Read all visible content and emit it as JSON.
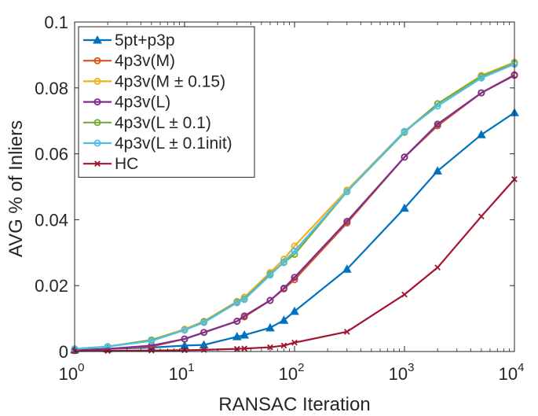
{
  "chart_data": {
    "type": "line",
    "xscale": "log",
    "xlabel": "RANSAC Iteration",
    "ylabel": "AVG % of Inliers",
    "xlim": [
      1,
      10000
    ],
    "ylim": [
      0,
      0.1
    ],
    "yticks": [
      0,
      0.02,
      0.04,
      0.06,
      0.08,
      0.1
    ],
    "ytick_labels": [
      "0",
      "0.02",
      "0.04",
      "0.06",
      "0.08",
      "0.1"
    ],
    "xticks": [
      1,
      10,
      100,
      1000,
      10000
    ],
    "xtick_labels": [
      {
        "base": "10",
        "exp": "0"
      },
      {
        "base": "10",
        "exp": "1"
      },
      {
        "base": "10",
        "exp": "2"
      },
      {
        "base": "10",
        "exp": "3"
      },
      {
        "base": "10",
        "exp": "4"
      }
    ],
    "x": [
      1,
      2,
      5,
      10,
      15,
      30,
      35,
      60,
      80,
      100,
      300,
      1000,
      2000,
      5000,
      10000
    ],
    "legend_position": "top-left",
    "series": [
      {
        "name": "5pt+p3p",
        "color": "#0072BD",
        "marker": "triangle",
        "values": [
          0.0005,
          0.0008,
          0.0012,
          0.0018,
          0.002,
          0.0045,
          0.005,
          0.0072,
          0.0095,
          0.0122,
          0.025,
          0.0435,
          0.0548,
          0.0658,
          0.0725
        ]
      },
      {
        "name": "4p3v(M)",
        "color": "#D95319",
        "marker": "circle",
        "values": [
          0.0003,
          0.0008,
          0.0015,
          0.0038,
          0.0058,
          0.0092,
          0.0105,
          0.0155,
          0.019,
          0.0218,
          0.039,
          0.059,
          0.0685,
          0.0785,
          0.084
        ]
      },
      {
        "name": "4p3v(M ± 0.15)",
        "color": "#EDB120",
        "marker": "circle",
        "values": [
          0.0008,
          0.0015,
          0.0035,
          0.0068,
          0.0092,
          0.0152,
          0.0165,
          0.024,
          0.028,
          0.032,
          0.049,
          0.0668,
          0.0752,
          0.0838,
          0.0878
        ]
      },
      {
        "name": "4p3v(L)",
        "color": "#7E2F8E",
        "marker": "circle",
        "values": [
          0.0003,
          0.0008,
          0.0018,
          0.0038,
          0.0058,
          0.0092,
          0.0108,
          0.0155,
          0.0192,
          0.0225,
          0.0395,
          0.059,
          0.069,
          0.0785,
          0.0838
        ]
      },
      {
        "name": "4p3v(L ± 0.1)",
        "color": "#77AC30",
        "marker": "circle",
        "values": [
          0.0008,
          0.0015,
          0.0035,
          0.0065,
          0.009,
          0.015,
          0.016,
          0.0235,
          0.027,
          0.0295,
          0.0485,
          0.0665,
          0.0752,
          0.0835,
          0.0875
        ]
      },
      {
        "name": "4p3v(L ± 0.1init)",
        "color": "#4DBEEE",
        "marker": "circle",
        "values": [
          0.0008,
          0.0015,
          0.0032,
          0.0065,
          0.0088,
          0.0148,
          0.0158,
          0.0232,
          0.0272,
          0.0305,
          0.0485,
          0.0668,
          0.0745,
          0.083,
          0.0872
        ]
      },
      {
        "name": "HC",
        "color": "#A2142F",
        "marker": "x",
        "values": [
          0.0001,
          0.0002,
          0.0003,
          0.0004,
          0.0005,
          0.0008,
          0.0009,
          0.0013,
          0.0018,
          0.0027,
          0.006,
          0.0173,
          0.0255,
          0.041,
          0.0523
        ]
      }
    ]
  }
}
